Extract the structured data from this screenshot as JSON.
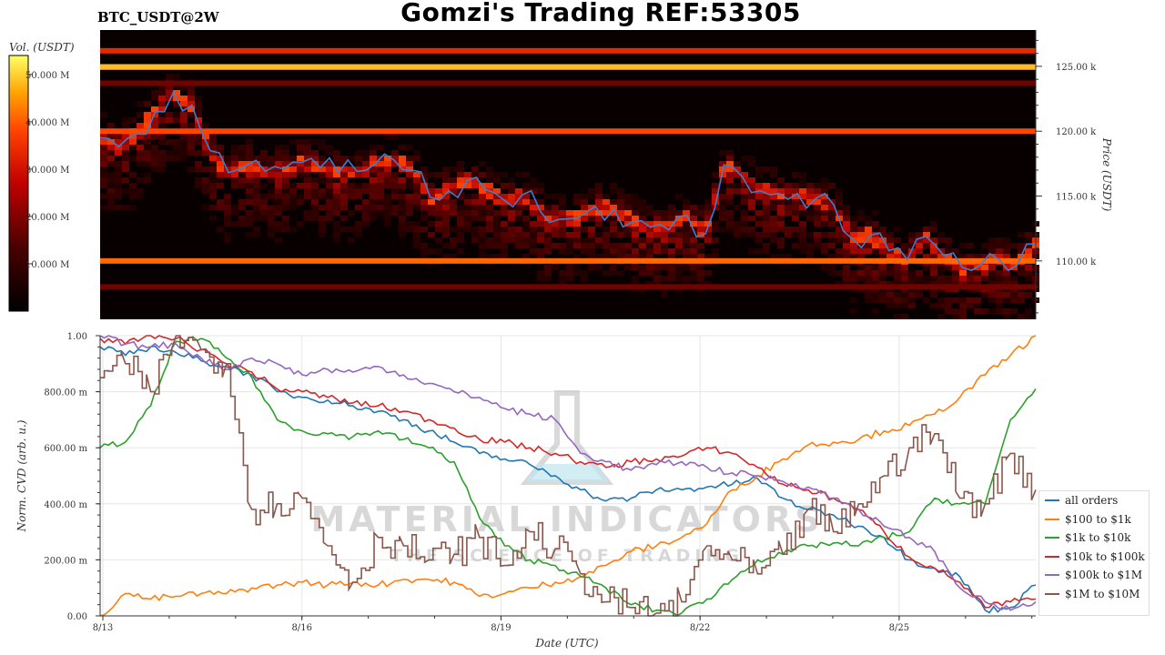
{
  "header": {
    "title": "Gomzi's Trading REF:53305",
    "pair": "BTC_USDT@2W"
  },
  "watermark": {
    "line1": "MATERIAL INDICATORS",
    "line2": "THE SCIENCE OF TRADING"
  },
  "chart_data": [
    {
      "type": "heatmap",
      "name": "orderbook-heatmap",
      "y_axis": {
        "label": "Price (USDT)",
        "ticks": [
          "110.00 k",
          "115.00 k",
          "120.00 k",
          "125.00 k"
        ],
        "tick_values": [
          110000,
          115000,
          120000,
          125000
        ],
        "range": [
          105500,
          127800
        ]
      },
      "colorbar": {
        "label": "Vol. (USDT)",
        "ticks": [
          "10.000 M",
          "20.000 M",
          "30.000 M",
          "40.000 M",
          "50.000 M"
        ],
        "tick_values": [
          10,
          20,
          30,
          40,
          50
        ],
        "range": [
          0,
          54
        ]
      },
      "bands": [
        {
          "price": 124950,
          "intensity": 1.0
        },
        {
          "price": 126200,
          "intensity": 0.65
        },
        {
          "price": 120000,
          "intensity": 0.75
        },
        {
          "price": 110000,
          "intensity": 0.8
        },
        {
          "price": 123700,
          "intensity": 0.35
        },
        {
          "price": 108000,
          "intensity": 0.35
        }
      ],
      "price_line": {
        "color": "#3a7fd0",
        "x_start": "8/13",
        "x_end": "8/27",
        "values": [
          119500,
          118800,
          119800,
          121500,
          123000,
          122000,
          118500,
          116800,
          117400,
          116900,
          117100,
          117600,
          117200,
          116800,
          116900,
          117500,
          117800,
          117000,
          114900,
          115400,
          116200,
          115500,
          114700,
          115100,
          113800,
          113200,
          113300,
          114200,
          114000,
          113000,
          112600,
          112400,
          113500,
          112100,
          117400,
          116500,
          115400,
          115200,
          115200,
          114800,
          114300,
          111700,
          112000,
          110800,
          110100,
          111900,
          110400,
          109500,
          109700,
          110100,
          109700,
          111300
        ]
      }
    },
    {
      "type": "line",
      "name": "cvd-chart",
      "xlabel": "Date (UTC)",
      "ylabel": "Norm. CVD (arb. u.)",
      "x_ticks": [
        "8/13",
        "8/16",
        "8/19",
        "8/22",
        "8/25"
      ],
      "y_ticks": [
        "0.00",
        "200.00 m",
        "400.00 m",
        "600.00 m",
        "800.00 m",
        "1.00"
      ],
      "ylim": [
        0,
        1
      ],
      "series": [
        {
          "name": "all orders",
          "color": "#1f77b4",
          "values": [
            0.96,
            0.93,
            0.96,
            0.94,
            0.91,
            0.89,
            0.86,
            0.8,
            0.78,
            0.77,
            0.75,
            0.73,
            0.7,
            0.66,
            0.62,
            0.58,
            0.56,
            0.54,
            0.5,
            0.45,
            0.41,
            0.42,
            0.45,
            0.45,
            0.46,
            0.47,
            0.49,
            0.42,
            0.38,
            0.36,
            0.32,
            0.28,
            0.2,
            0.17,
            0.14,
            0.02,
            0.03,
            0.11
          ]
        },
        {
          "name": "$100 to $1k",
          "color": "#ff7f0e",
          "values": [
            0.0,
            0.08,
            0.06,
            0.07,
            0.08,
            0.08,
            0.1,
            0.11,
            0.12,
            0.11,
            0.12,
            0.11,
            0.13,
            0.13,
            0.12,
            0.07,
            0.08,
            0.1,
            0.12,
            0.14,
            0.18,
            0.23,
            0.25,
            0.28,
            0.33,
            0.45,
            0.5,
            0.56,
            0.61,
            0.62,
            0.63,
            0.66,
            0.68,
            0.72,
            0.78,
            0.86,
            0.93,
            1.0
          ]
        },
        {
          "name": "$1k to $10k",
          "color": "#2ca02c",
          "values": [
            0.6,
            0.62,
            0.75,
            0.98,
            0.99,
            0.92,
            0.85,
            0.7,
            0.66,
            0.65,
            0.64,
            0.66,
            0.63,
            0.6,
            0.55,
            0.35,
            0.25,
            0.2,
            0.18,
            0.14,
            0.1,
            0.04,
            0.02,
            0.01,
            0.06,
            0.13,
            0.2,
            0.22,
            0.25,
            0.26,
            0.25,
            0.28,
            0.3,
            0.42,
            0.4,
            0.4,
            0.7,
            0.81
          ]
        },
        {
          "name": "$10k to $100k",
          "color": "#d62728",
          "values": [
            0.99,
            0.97,
            1.0,
            0.99,
            0.95,
            0.9,
            0.87,
            0.81,
            0.8,
            0.78,
            0.76,
            0.75,
            0.73,
            0.7,
            0.67,
            0.63,
            0.62,
            0.6,
            0.58,
            0.55,
            0.53,
            0.55,
            0.56,
            0.57,
            0.6,
            0.58,
            0.53,
            0.47,
            0.45,
            0.42,
            0.38,
            0.3,
            0.21,
            0.17,
            0.12,
            0.03,
            0.05,
            0.06
          ]
        },
        {
          "name": "$100k to $1M",
          "color": "#9467bd",
          "values": [
            1.0,
            0.97,
            0.96,
            0.97,
            0.92,
            0.88,
            0.92,
            0.9,
            0.86,
            0.88,
            0.87,
            0.89,
            0.86,
            0.83,
            0.8,
            0.78,
            0.74,
            0.72,
            0.7,
            0.58,
            0.55,
            0.52,
            0.54,
            0.55,
            0.53,
            0.51,
            0.5,
            0.48,
            0.46,
            0.42,
            0.38,
            0.32,
            0.28,
            0.23,
            0.1,
            0.05,
            0.02,
            0.05
          ]
        },
        {
          "name": "$1M to $10M",
          "color": "#8c564b",
          "values": [
            0.85,
            0.9,
            0.8,
            1.0,
            0.95,
            0.9,
            0.38,
            0.4,
            0.42,
            0.25,
            0.12,
            0.28,
            0.25,
            0.2,
            0.22,
            0.28,
            0.18,
            0.3,
            0.24,
            0.15,
            0.05,
            0.03,
            0.01,
            0.05,
            0.25,
            0.2,
            0.15,
            0.22,
            0.38,
            0.3,
            0.4,
            0.5,
            0.6,
            0.65,
            0.42,
            0.4,
            0.58,
            0.45
          ]
        }
      ]
    }
  ]
}
